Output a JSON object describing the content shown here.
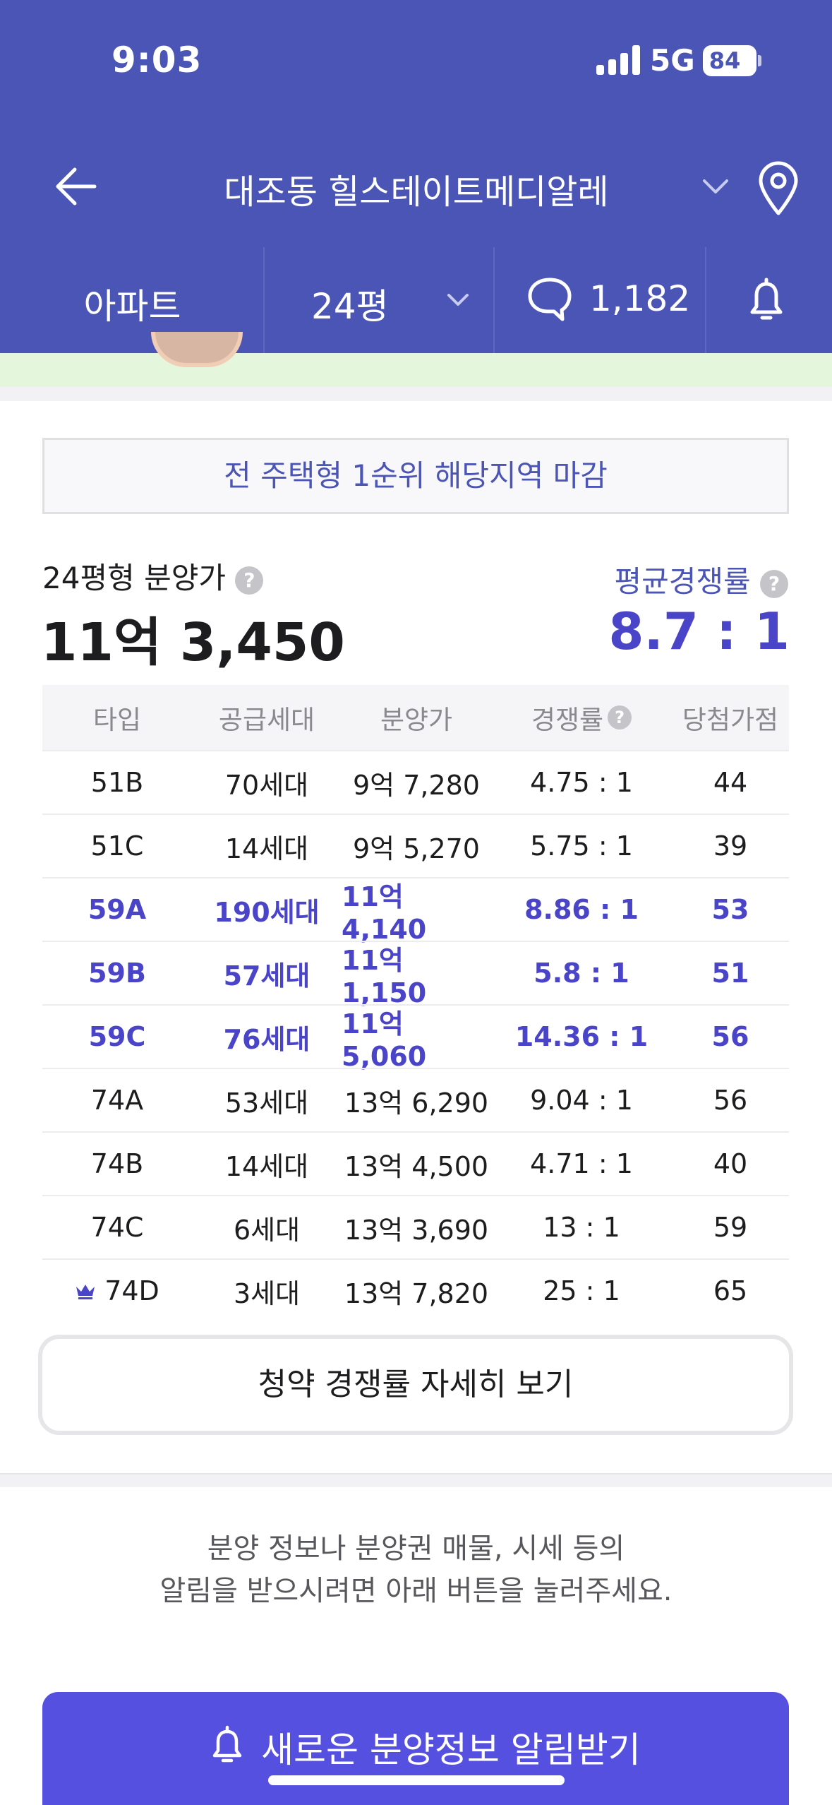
{
  "status_bar": {
    "time": "9:03",
    "network": "5G",
    "battery": "84"
  },
  "nav": {
    "title": "대조동 힐스테이트메디알레"
  },
  "filters": {
    "type": "아파트",
    "size": "24평",
    "comments": "1,182"
  },
  "notice": "전 주택형 1순위 해당지역 마감",
  "price": {
    "label": "24평형 분양가",
    "value": "11억 3,450"
  },
  "competition": {
    "label": "평균경쟁률",
    "value": "8.7 : 1"
  },
  "table": {
    "headers": [
      "타입",
      "공급세대",
      "분양가",
      "경쟁률",
      "당첨가점"
    ],
    "rows": [
      {
        "type": "51B",
        "units": "70세대",
        "price": "9억 7,280",
        "rate": "4.75 : 1",
        "score": "44",
        "highlight": false
      },
      {
        "type": "51C",
        "units": "14세대",
        "price": "9억 5,270",
        "rate": "5.75 : 1",
        "score": "39",
        "highlight": false
      },
      {
        "type": "59A",
        "units": "190세대",
        "price": "11억 4,140",
        "rate": "8.86 : 1",
        "score": "53",
        "highlight": true
      },
      {
        "type": "59B",
        "units": "57세대",
        "price": "11억 1,150",
        "rate": "5.8 : 1",
        "score": "51",
        "highlight": true
      },
      {
        "type": "59C",
        "units": "76세대",
        "price": "11억 5,060",
        "rate": "14.36 : 1",
        "score": "56",
        "highlight": true
      },
      {
        "type": "74A",
        "units": "53세대",
        "price": "13억 6,290",
        "rate": "9.04 : 1",
        "score": "56",
        "highlight": false
      },
      {
        "type": "74B",
        "units": "14세대",
        "price": "13억 4,500",
        "rate": "4.71 : 1",
        "score": "40",
        "highlight": false
      },
      {
        "type": "74C",
        "units": "6세대",
        "price": "13억 3,690",
        "rate": "13 : 1",
        "score": "59",
        "highlight": false
      },
      {
        "type": "74D",
        "units": "3세대",
        "price": "13억 7,820",
        "rate": "25 : 1",
        "score": "65",
        "highlight": false,
        "crown": true
      }
    ]
  },
  "detail_button": "청약 경쟁률 자세히 보기",
  "info": {
    "line1": "분양 정보나 분양권 매물, 시세 등의",
    "line2": "알림을 받으시려면 아래 버튼을 눌러주세요."
  },
  "cta": {
    "label": "새로운 분양정보 알림받기"
  },
  "colors": {
    "header": "#4b55b5",
    "accent": "#4a44c9",
    "cta": "#5650e0"
  },
  "icons": [
    "back-arrow-icon",
    "chevron-down-icon",
    "location-pin-icon",
    "chat-bubble-icon",
    "bell-icon",
    "help-icon",
    "crown-icon"
  ]
}
